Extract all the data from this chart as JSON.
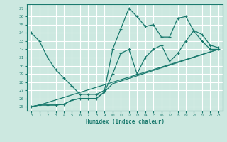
{
  "title": "",
  "xlabel": "Humidex (Indice chaleur)",
  "bg_color": "#cce8e0",
  "line_color": "#1a7a6e",
  "grid_color": "#ffffff",
  "xlim": [
    -0.5,
    23.5
  ],
  "ylim": [
    24.5,
    37.5
  ],
  "xticks": [
    0,
    1,
    2,
    3,
    4,
    5,
    6,
    7,
    8,
    9,
    10,
    11,
    12,
    13,
    14,
    15,
    16,
    17,
    18,
    19,
    20,
    21,
    22,
    23
  ],
  "yticks": [
    25,
    26,
    27,
    28,
    29,
    30,
    31,
    32,
    33,
    34,
    35,
    36,
    37
  ],
  "line1_x": [
    0,
    1,
    2,
    3,
    4,
    5,
    6,
    7,
    8,
    9,
    10,
    11,
    12,
    13,
    14,
    15,
    16,
    17,
    18,
    19,
    20,
    21,
    22,
    23
  ],
  "line1_y": [
    34.0,
    33.0,
    31.0,
    29.5,
    28.5,
    27.5,
    26.5,
    26.5,
    26.5,
    27.0,
    32.0,
    34.5,
    37.0,
    36.0,
    34.8,
    35.0,
    33.5,
    33.5,
    35.8,
    36.0,
    34.2,
    33.0,
    32.0,
    32.0
  ],
  "line2_x": [
    0,
    1,
    2,
    3,
    4,
    5,
    6,
    7,
    8,
    9,
    10,
    11,
    12,
    13,
    14,
    15,
    16,
    17,
    18,
    19,
    20,
    21,
    22,
    23
  ],
  "line2_y": [
    25.0,
    25.2,
    25.2,
    25.2,
    25.3,
    25.8,
    26.0,
    26.0,
    26.0,
    26.8,
    29.0,
    31.5,
    32.0,
    29.0,
    31.0,
    32.0,
    32.5,
    30.5,
    31.5,
    33.0,
    34.3,
    33.8,
    32.5,
    32.2
  ],
  "line3_x": [
    0,
    1,
    2,
    3,
    4,
    5,
    6,
    7,
    8,
    9,
    10,
    23
  ],
  "line3_y": [
    25.0,
    25.2,
    25.2,
    25.2,
    25.3,
    25.8,
    26.0,
    26.0,
    26.0,
    26.8,
    27.8,
    32.0
  ],
  "line4_x": [
    0,
    1,
    23
  ],
  "line4_y": [
    25.0,
    25.2,
    32.0
  ]
}
